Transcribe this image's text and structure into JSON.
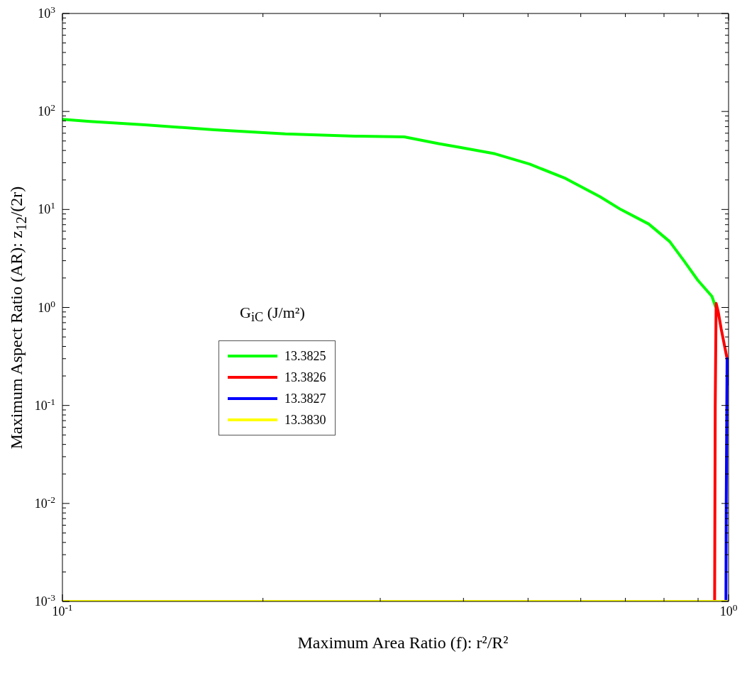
{
  "chart_data": {
    "type": "line",
    "xlabel": "Maximum Area Ratio (f): r²/R²",
    "ylabel": "Maximum Aspect Ratio (AR): z$_{12}$/(2r)",
    "legend_title": "G$_{iC}$ (J/m²)",
    "legend": "center",
    "log": "xy",
    "line_style": "solid",
    "marker": "none",
    "xlim": [
      0.1,
      1
    ],
    "ylim": [
      0.001,
      1000
    ],
    "xticks": [
      {
        "value": 0.1,
        "label": "10$^{-1}$"
      },
      {
        "value": 0.2,
        "label": null
      },
      {
        "value": 0.3,
        "label": null
      },
      {
        "value": 0.4,
        "label": null
      },
      {
        "value": 0.5,
        "label": null
      },
      {
        "value": 0.6,
        "label": null
      },
      {
        "value": 0.7,
        "label": null
      },
      {
        "value": 0.8,
        "label": null
      },
      {
        "value": 0.9,
        "label": null
      },
      {
        "value": 1,
        "label": "10$^{0}$"
      }
    ],
    "yticks": [
      {
        "value": 0.001,
        "label": "10$^{-3}$"
      },
      {
        "value": 0.002,
        "label": null
      },
      {
        "value": 0.003,
        "label": null
      },
      {
        "value": 0.004,
        "label": null
      },
      {
        "value": 0.005,
        "label": null
      },
      {
        "value": 0.006,
        "label": null
      },
      {
        "value": 0.007,
        "label": null
      },
      {
        "value": 0.008,
        "label": null
      },
      {
        "value": 0.009,
        "label": null
      },
      {
        "value": 0.01,
        "label": "10$^{-2}$"
      },
      {
        "value": 0.02,
        "label": null
      },
      {
        "value": 0.03,
        "label": null
      },
      {
        "value": 0.04,
        "label": null
      },
      {
        "value": 0.05,
        "label": null
      },
      {
        "value": 0.06,
        "label": null
      },
      {
        "value": 0.07,
        "label": null
      },
      {
        "value": 0.08,
        "label": null
      },
      {
        "value": 0.09,
        "label": null
      },
      {
        "value": 0.1,
        "label": "10$^{-1}$"
      },
      {
        "value": 0.2,
        "label": null
      },
      {
        "value": 0.3,
        "label": null
      },
      {
        "value": 0.4,
        "label": null
      },
      {
        "value": 0.5,
        "label": null
      },
      {
        "value": 0.6,
        "label": null
      },
      {
        "value": 0.7,
        "label": null
      },
      {
        "value": 0.8,
        "label": null
      },
      {
        "value": 0.9,
        "label": null
      },
      {
        "value": 1,
        "label": "10$^{0}$"
      },
      {
        "value": 2,
        "label": null
      },
      {
        "value": 3,
        "label": null
      },
      {
        "value": 4,
        "label": null
      },
      {
        "value": 5,
        "label": null
      },
      {
        "value": 6,
        "label": null
      },
      {
        "value": 7,
        "label": null
      },
      {
        "value": 8,
        "label": null
      },
      {
        "value": 9,
        "label": null
      },
      {
        "value": 10,
        "label": "10$^{1}$"
      },
      {
        "value": 20,
        "label": null
      },
      {
        "value": 30,
        "label": null
      },
      {
        "value": 40,
        "label": null
      },
      {
        "value": 50,
        "label": null
      },
      {
        "value": 60,
        "label": null
      },
      {
        "value": 70,
        "label": null
      },
      {
        "value": 80,
        "label": null
      },
      {
        "value": 90,
        "label": null
      },
      {
        "value": 100,
        "label": "10$^{2}$"
      },
      {
        "value": 200,
        "label": null
      },
      {
        "value": 300,
        "label": null
      },
      {
        "value": 400,
        "label": null
      },
      {
        "value": 500,
        "label": null
      },
      {
        "value": 600,
        "label": null
      },
      {
        "value": 700,
        "label": null
      },
      {
        "value": 800,
        "label": null
      },
      {
        "value": 900,
        "label": null
      },
      {
        "value": 1000,
        "label": "10$^{3}$"
      }
    ],
    "series": [
      {
        "name": "13.3825",
        "color": "#00ff00",
        "x": [
          0.1,
          0.11,
          0.133,
          0.169,
          0.216,
          0.275,
          0.326,
          0.367,
          0.395,
          0.446,
          0.503,
          0.567,
          0.641,
          0.689,
          0.759,
          0.816,
          0.857,
          0.899,
          0.944,
          0.957
        ],
        "values": [
          83,
          79,
          73,
          65,
          59,
          56,
          55,
          47,
          43,
          37,
          29,
          21,
          13.5,
          10,
          7.1,
          4.7,
          3,
          1.9,
          1.3,
          1
        ]
      },
      {
        "name": "13.3826",
        "color": "#ff0000",
        "x": [
          0.953,
          0.954,
          0.955,
          0.957,
          0.958,
          0.965,
          0.975,
          0.995
        ],
        "values": [
          0.001,
          0.01,
          0.1,
          0.5,
          1.1,
          0.9,
          0.6,
          0.3
        ]
      },
      {
        "name": "13.3827",
        "color": "#0000ff",
        "x": [
          0.991,
          0.992,
          0.994,
          0.995,
          0.997
        ],
        "values": [
          0.001,
          0.01,
          0.1,
          0.3,
          0.16
        ]
      },
      {
        "name": "13.3830",
        "color": "#ffff00",
        "x": [
          0.1,
          0.995
        ],
        "values": [
          0.001,
          0.001
        ]
      }
    ]
  }
}
